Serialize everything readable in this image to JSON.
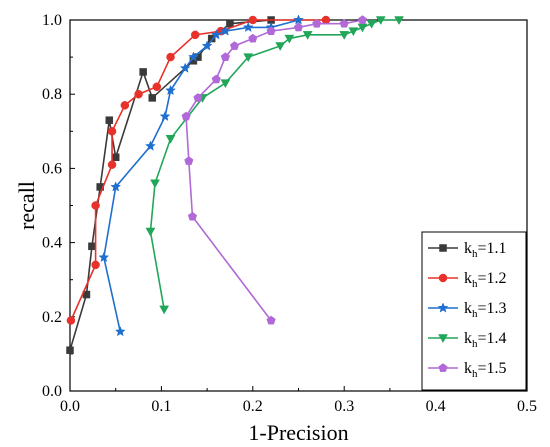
{
  "chart_data": {
    "type": "line",
    "title": "",
    "xlabel": "1-Precision",
    "ylabel": "recall",
    "xlim": [
      0.0,
      0.5
    ],
    "ylim": [
      0.0,
      1.0
    ],
    "x_ticks": [
      "0.0",
      "0.1",
      "0.2",
      "0.3",
      "0.4",
      "0.5"
    ],
    "y_ticks": [
      "0.0",
      "0.2",
      "0.4",
      "0.6",
      "0.8",
      "1.0"
    ],
    "grid": false,
    "legend_position": "bottom-right",
    "series": [
      {
        "name": "k_h=1.1",
        "label_main": "k",
        "label_sub": "h",
        "label_rest": "=1.1",
        "color": "#3a3a3a",
        "marker": "square",
        "points": [
          [
            0.0,
            0.11
          ],
          [
            0.018,
            0.26
          ],
          [
            0.024,
            0.39
          ],
          [
            0.033,
            0.55
          ],
          [
            0.043,
            0.73
          ],
          [
            0.05,
            0.63
          ],
          [
            0.08,
            0.86
          ],
          [
            0.09,
            0.79
          ],
          [
            0.135,
            0.89
          ],
          [
            0.14,
            0.9
          ],
          [
            0.155,
            0.95
          ],
          [
            0.175,
            0.99
          ],
          [
            0.22,
            1.0
          ]
        ]
      },
      {
        "name": "k_h=1.2",
        "label_main": "k",
        "label_sub": "h",
        "label_rest": "=1.2",
        "color": "#e8312a",
        "marker": "circle",
        "points": [
          [
            0.001,
            0.19
          ],
          [
            0.028,
            0.34
          ],
          [
            0.028,
            0.5
          ],
          [
            0.046,
            0.61
          ],
          [
            0.046,
            0.7
          ],
          [
            0.06,
            0.77
          ],
          [
            0.075,
            0.8
          ],
          [
            0.095,
            0.82
          ],
          [
            0.11,
            0.9
          ],
          [
            0.137,
            0.96
          ],
          [
            0.165,
            0.97
          ],
          [
            0.2,
            1.0
          ],
          [
            0.28,
            1.0
          ]
        ]
      },
      {
        "name": "k_h=1.3",
        "label_main": "k",
        "label_sub": "h",
        "label_rest": "=1.3",
        "color": "#1f6fd0",
        "marker": "star",
        "points": [
          [
            0.055,
            0.16
          ],
          [
            0.037,
            0.36
          ],
          [
            0.05,
            0.55
          ],
          [
            0.088,
            0.66
          ],
          [
            0.104,
            0.74
          ],
          [
            0.11,
            0.81
          ],
          [
            0.126,
            0.87
          ],
          [
            0.135,
            0.9
          ],
          [
            0.15,
            0.93
          ],
          [
            0.16,
            0.96
          ],
          [
            0.17,
            0.97
          ],
          [
            0.195,
            0.98
          ],
          [
            0.22,
            0.98
          ],
          [
            0.25,
            1.0
          ]
        ]
      },
      {
        "name": "k_h=1.4",
        "label_main": "k",
        "label_sub": "h",
        "label_rest": "=1.4",
        "color": "#22a65a",
        "marker": "triangle-down",
        "points": [
          [
            0.103,
            0.22
          ],
          [
            0.088,
            0.43
          ],
          [
            0.093,
            0.56
          ],
          [
            0.11,
            0.68
          ],
          [
            0.145,
            0.79
          ],
          [
            0.17,
            0.83
          ],
          [
            0.195,
            0.9
          ],
          [
            0.23,
            0.93
          ],
          [
            0.24,
            0.95
          ],
          [
            0.26,
            0.96
          ],
          [
            0.3,
            0.96
          ],
          [
            0.31,
            0.97
          ],
          [
            0.32,
            0.98
          ],
          [
            0.33,
            0.99
          ],
          [
            0.34,
            1.0
          ],
          [
            0.36,
            1.0
          ]
        ]
      },
      {
        "name": "k_h=1.5",
        "label_main": "k",
        "label_sub": "h",
        "label_rest": "=1.5",
        "color": "#b069d6",
        "marker": "pentagon",
        "points": [
          [
            0.22,
            0.19
          ],
          [
            0.134,
            0.47
          ],
          [
            0.13,
            0.62
          ],
          [
            0.127,
            0.74
          ],
          [
            0.14,
            0.79
          ],
          [
            0.16,
            0.84
          ],
          [
            0.17,
            0.9
          ],
          [
            0.18,
            0.93
          ],
          [
            0.2,
            0.95
          ],
          [
            0.22,
            0.97
          ],
          [
            0.25,
            0.98
          ],
          [
            0.27,
            0.99
          ],
          [
            0.3,
            0.99
          ],
          [
            0.32,
            1.0
          ]
        ]
      }
    ]
  }
}
